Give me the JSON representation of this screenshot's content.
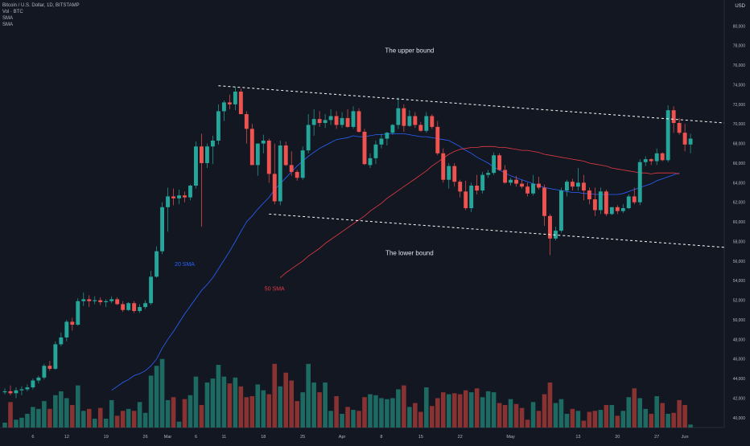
{
  "header": {
    "symbol_line": "Bitcoin / U.S. Dollar, 1D, BITSTAMP",
    "vol_line": "Vol · BTC",
    "sma1_line": "SMA",
    "sma2_line": "SMA",
    "currency": "USD"
  },
  "colors": {
    "background": "#131722",
    "up": "#26a69a",
    "down": "#ef5350",
    "vol_up": "#1e6f66",
    "vol_down": "#8e3434",
    "sma20": "#2962ff",
    "sma50": "#e53a43",
    "channel": "#ffffff",
    "axis_text": "#b2b5be",
    "grid": "#1e222d"
  },
  "chart_data": {
    "type": "candlestick",
    "y_ticks": [
      40000,
      42000,
      44000,
      46000,
      48000,
      50000,
      52000,
      54000,
      56000,
      58000,
      60000,
      62000,
      64000,
      66000,
      68000,
      70000,
      72000,
      74000,
      76000,
      78000,
      80000
    ],
    "y_tick_labels": [
      "40,000",
      "42,000",
      "44,000",
      "46,000",
      "48,000",
      "50,000",
      "52,000",
      "54,000",
      "56,000",
      "58,000",
      "60,000",
      "62,000",
      "64,000",
      "66,000",
      "68,000",
      "70,000",
      "72,000",
      "74,000",
      "76,000",
      "78,000",
      "80,000"
    ],
    "ylim": [
      39000,
      82000
    ],
    "x_ticks": [
      {
        "label": "6",
        "date": "2024-02-06"
      },
      {
        "label": "12",
        "date": "2024-02-12"
      },
      {
        "label": "19",
        "date": "2024-02-19"
      },
      {
        "label": "26",
        "date": "2024-02-26"
      },
      {
        "label": "Mar",
        "date": "2024-03-01"
      },
      {
        "label": "6",
        "date": "2024-03-06"
      },
      {
        "label": "11",
        "date": "2024-03-11"
      },
      {
        "label": "18",
        "date": "2024-03-18"
      },
      {
        "label": "25",
        "date": "2024-03-25"
      },
      {
        "label": "Apr",
        "date": "2024-04-01"
      },
      {
        "label": "8",
        "date": "2024-04-08"
      },
      {
        "label": "15",
        "date": "2024-04-15"
      },
      {
        "label": "22",
        "date": "2024-04-22"
      },
      {
        "label": "May",
        "date": "2024-05-01"
      },
      {
        "label": "13",
        "date": "2024-05-13"
      },
      {
        "label": "20",
        "date": "2024-05-20"
      },
      {
        "label": "27",
        "date": "2024-05-27"
      },
      {
        "label": "Jun",
        "date": "2024-06-01"
      }
    ],
    "first_date": "2024-02-01",
    "last_axis_date": "2024-06-08",
    "candles": [
      [
        42600,
        43000,
        42400,
        42700
      ],
      [
        42700,
        43300,
        42300,
        42500
      ],
      [
        42500,
        43100,
        42000,
        42800
      ],
      [
        42800,
        43200,
        42300,
        42900
      ],
      [
        42900,
        43400,
        42700,
        43100
      ],
      [
        43100,
        44000,
        42900,
        43800
      ],
      [
        43800,
        44300,
        43500,
        44100
      ],
      [
        44100,
        45500,
        43900,
        45300
      ],
      [
        45300,
        45800,
        44800,
        45000
      ],
      [
        45000,
        47800,
        44900,
        47500
      ],
      [
        47500,
        48700,
        47300,
        48200
      ],
      [
        48200,
        50000,
        47800,
        49800
      ],
      [
        49800,
        50200,
        48900,
        49500
      ],
      [
        49500,
        52200,
        49400,
        51900
      ],
      [
        51900,
        52800,
        51400,
        52100
      ],
      [
        52100,
        52500,
        51300,
        51900
      ],
      [
        51900,
        52400,
        51600,
        52000
      ],
      [
        52000,
        52300,
        51500,
        51800
      ],
      [
        51800,
        52100,
        51300,
        51900
      ],
      [
        51900,
        52400,
        51700,
        52100
      ],
      [
        52100,
        52300,
        51500,
        51600
      ],
      [
        51600,
        51900,
        50800,
        51000
      ],
      [
        51000,
        51800,
        50900,
        51700
      ],
      [
        51700,
        51900,
        50700,
        50900
      ],
      [
        50900,
        51600,
        50700,
        51300
      ],
      [
        51300,
        52000,
        51100,
        51700
      ],
      [
        51700,
        55000,
        51500,
        54400
      ],
      [
        54400,
        57500,
        54300,
        57000
      ],
      [
        57000,
        62000,
        56700,
        61500
      ],
      [
        61500,
        63500,
        59000,
        62600
      ],
      [
        62600,
        63400,
        61700,
        62400
      ],
      [
        62400,
        63300,
        61800,
        62700
      ],
      [
        62700,
        63100,
        62000,
        62500
      ],
      [
        62500,
        63800,
        62200,
        63700
      ],
      [
        63700,
        68200,
        63400,
        67700
      ],
      [
        67700,
        69000,
        59500,
        66000
      ],
      [
        66000,
        68000,
        65500,
        67700
      ],
      [
        67700,
        68800,
        65900,
        68300
      ],
      [
        68300,
        72000,
        67900,
        71300
      ],
      [
        71300,
        72400,
        70300,
        72200
      ],
      [
        72200,
        73000,
        71500,
        72000
      ],
      [
        72000,
        73800,
        71400,
        73300
      ],
      [
        73300,
        73600,
        71000,
        71000
      ],
      [
        71000,
        71300,
        68000,
        69500
      ],
      [
        69500,
        70000,
        66000,
        65800
      ],
      [
        65800,
        68000,
        64700,
        68000
      ],
      [
        68000,
        68900,
        67000,
        68300
      ],
      [
        68300,
        68500,
        64000,
        64900
      ],
      [
        64900,
        68000,
        61800,
        62100
      ],
      [
        62100,
        68300,
        61700,
        67800
      ],
      [
        67800,
        68200,
        65700,
        65800
      ],
      [
        65800,
        67200,
        64700,
        65100
      ],
      [
        65100,
        65300,
        64200,
        64500
      ],
      [
        64500,
        67700,
        64300,
        67300
      ],
      [
        67300,
        71000,
        67000,
        69900
      ],
      [
        69900,
        71500,
        68800,
        70500
      ],
      [
        70500,
        71300,
        69700,
        70100
      ],
      [
        70100,
        71000,
        69600,
        70400
      ],
      [
        70400,
        71500,
        69900,
        70800
      ],
      [
        70800,
        71300,
        69500,
        69900
      ],
      [
        69900,
        71200,
        69600,
        70600
      ],
      [
        70600,
        71500,
        69600,
        69700
      ],
      [
        69700,
        71800,
        69500,
        71300
      ],
      [
        71300,
        71600,
        69100,
        69200
      ],
      [
        69200,
        69500,
        65800,
        65900
      ],
      [
        65800,
        67000,
        65500,
        66500
      ],
      [
        66500,
        68300,
        65900,
        67900
      ],
      [
        67900,
        69000,
        67500,
        68500
      ],
      [
        68500,
        69200,
        67800,
        69100
      ],
      [
        69100,
        70000,
        68900,
        69900
      ],
      [
        69900,
        72700,
        69500,
        71600
      ],
      [
        71600,
        72000,
        69200,
        69800
      ],
      [
        69800,
        71400,
        69700,
        70800
      ],
      [
        70800,
        71200,
        69600,
        69900
      ],
      [
        69900,
        70200,
        69200,
        69300
      ],
      [
        69300,
        71200,
        69100,
        70800
      ],
      [
        70800,
        71000,
        69500,
        69700
      ],
      [
        69700,
        70300,
        66800,
        67000
      ],
      [
        67000,
        67500,
        64000,
        64300
      ],
      [
        64300,
        66000,
        63400,
        65700
      ],
      [
        65700,
        66000,
        63600,
        64100
      ],
      [
        64100,
        64300,
        62500,
        63100
      ],
      [
        63100,
        64200,
        61200,
        61400
      ],
      [
        61400,
        64000,
        61000,
        63700
      ],
      [
        63700,
        64800,
        62800,
        63200
      ],
      [
        63200,
        65100,
        62900,
        64800
      ],
      [
        64800,
        65300,
        64500,
        65000
      ],
      [
        65000,
        67100,
        64800,
        66800
      ],
      [
        66800,
        67000,
        65200,
        65300
      ],
      [
        65300,
        65800,
        63900,
        64000
      ],
      [
        64000,
        64500,
        63700,
        64300
      ],
      [
        64300,
        64700,
        63600,
        63900
      ],
      [
        63900,
        64300,
        63400,
        63600
      ],
      [
        63600,
        64000,
        62600,
        62900
      ],
      [
        62900,
        64800,
        62700,
        63900
      ],
      [
        63900,
        64600,
        63300,
        63500
      ],
      [
        63500,
        63800,
        59600,
        60600
      ],
      [
        60600,
        60800,
        56600,
        58300
      ],
      [
        58300,
        59500,
        58100,
        59100
      ],
      [
        59100,
        63500,
        58900,
        63200
      ],
      [
        63200,
        64300,
        62600,
        64100
      ],
      [
        64100,
        64400,
        63200,
        63600
      ],
      [
        63600,
        65500,
        63200,
        64000
      ],
      [
        64000,
        64800,
        62200,
        63200
      ],
      [
        63200,
        63500,
        61800,
        62300
      ],
      [
        62300,
        63500,
        60600,
        61200
      ],
      [
        61200,
        63500,
        60800,
        63100
      ],
      [
        63100,
        63300,
        60600,
        60800
      ],
      [
        60800,
        61500,
        60700,
        61500
      ],
      [
        61500,
        61700,
        60800,
        61100
      ],
      [
        61100,
        61800,
        60900,
        61400
      ],
      [
        61400,
        62800,
        61300,
        62600
      ],
      [
        62600,
        63500,
        61800,
        62000
      ],
      [
        62000,
        66400,
        61700,
        66100
      ],
      [
        66100,
        66700,
        65700,
        66400
      ],
      [
        66400,
        66500,
        65800,
        66200
      ],
      [
        66200,
        67500,
        65800,
        67000
      ],
      [
        67000,
        67100,
        66200,
        66300
      ],
      [
        66300,
        71900,
        66100,
        71400
      ],
      [
        71400,
        71800,
        69100,
        70100
      ],
      [
        70100,
        70600,
        68900,
        69100
      ],
      [
        69100,
        70000,
        67200,
        67900
      ],
      [
        67900,
        69000,
        67000,
        68500
      ]
    ],
    "volumes": [
      39500,
      41600,
      39800,
      40000,
      40400,
      41100,
      40900,
      41700,
      40900,
      42300,
      42700,
      42000,
      41300,
      43300,
      40700,
      40900,
      39900,
      41000,
      39900,
      41800,
      40200,
      40700,
      40900,
      40700,
      41600,
      40500,
      44300,
      45300,
      46000,
      41800,
      42100,
      39600,
      41900,
      42300,
      44200,
      41300,
      43600,
      44000,
      45400,
      44200,
      43500,
      44100,
      43200,
      42100,
      42200,
      43400,
      42800,
      42400,
      45500,
      43200,
      44600,
      43800,
      41700,
      42600,
      45500,
      43600,
      42600,
      43600,
      40700,
      42200,
      40400,
      41100,
      40800,
      40700,
      42100,
      42400,
      42300,
      42000,
      41900,
      42000,
      42900,
      43300,
      41100,
      41500,
      40600,
      43100,
      41200,
      42000,
      42600,
      42400,
      42500,
      42400,
      42800,
      42600,
      43000,
      42100,
      42700,
      42600,
      41500,
      41300,
      41900,
      41400,
      41000,
      39800,
      41600,
      40700,
      42400,
      43600,
      41500,
      41900,
      40400,
      40900,
      40700,
      39700,
      40600,
      40700,
      40800,
      41300,
      41300,
      40200,
      40700,
      42100,
      43000,
      42000,
      40900,
      40400,
      42200,
      41500,
      40400,
      40500,
      41800,
      41300,
      39300
    ],
    "series": [
      {
        "name": "20 SMA",
        "values": [
          null,
          null,
          null,
          null,
          null,
          null,
          null,
          null,
          null,
          null,
          null,
          null,
          null,
          null,
          null,
          null,
          null,
          null,
          null,
          42800,
          43200,
          43600,
          43900,
          44300,
          44500,
          44800,
          45300,
          46000,
          47100,
          48000,
          48800,
          49700,
          50600,
          51400,
          52200,
          53000,
          53600,
          54300,
          55200,
          56100,
          57000,
          58000,
          59000,
          60000,
          60600,
          61300,
          61900,
          62500,
          63300,
          63900,
          64500,
          65100,
          65700,
          66200,
          66700,
          67100,
          67500,
          67800,
          68100,
          68400,
          68500,
          68600,
          68800,
          68700,
          68700,
          68800,
          68900,
          68900,
          69000,
          69000,
          69000,
          69000,
          68900,
          68800,
          68700,
          68700,
          68600,
          68500,
          68400,
          68300,
          68000,
          67700,
          67300,
          67000,
          66600,
          66300,
          66000,
          65600,
          65300,
          65000,
          64700,
          64500,
          64300,
          64100,
          63900,
          63700,
          63500,
          63400,
          63300,
          63200,
          63100,
          63000,
          63000,
          62900,
          62900,
          62800,
          62800,
          62800,
          62800,
          62800,
          62900,
          63100,
          63300,
          63500,
          63700,
          63900,
          64200,
          64400,
          64600,
          64800,
          65000
        ]
      },
      {
        "name": "50 SMA",
        "values": [
          null,
          null,
          null,
          null,
          null,
          null,
          null,
          null,
          null,
          null,
          null,
          null,
          null,
          null,
          null,
          null,
          null,
          null,
          null,
          null,
          null,
          null,
          null,
          null,
          null,
          null,
          null,
          null,
          null,
          null,
          null,
          null,
          null,
          null,
          null,
          null,
          null,
          null,
          null,
          null,
          null,
          null,
          null,
          null,
          null,
          null,
          null,
          null,
          null,
          54300,
          54800,
          55200,
          55600,
          56000,
          56500,
          56900,
          57300,
          57800,
          58200,
          58600,
          59000,
          59400,
          59800,
          60200,
          60600,
          61100,
          61500,
          61900,
          62400,
          62800,
          63200,
          63600,
          64000,
          64400,
          64800,
          65200,
          65700,
          66100,
          66500,
          66900,
          67200,
          67400,
          67500,
          67600,
          67600,
          67700,
          67700,
          67700,
          67600,
          67600,
          67500,
          67400,
          67300,
          67300,
          67200,
          67100,
          66900,
          66800,
          66700,
          66600,
          66500,
          66400,
          66300,
          66200,
          66000,
          65900,
          65800,
          65700,
          65500,
          65400,
          65300,
          65200,
          65100,
          65000,
          65000,
          64900,
          65000,
          65000,
          65000,
          65000,
          64900
        ]
      }
    ],
    "sma_labels": [
      {
        "text": "20 SMA",
        "date": "2024-03-04",
        "price": 55500
      },
      {
        "text": "50 SMA",
        "date": "2024-03-20",
        "price": 53000
      }
    ],
    "channel": {
      "upper": {
        "from": {
          "date": "2024-03-10",
          "price": 73900
        },
        "to": {
          "date": "2024-06-08",
          "price": 70100
        }
      },
      "lower": {
        "from": {
          "date": "2024-03-19",
          "price": 60800
        },
        "to": {
          "date": "2024-06-08",
          "price": 57400
        }
      }
    },
    "annotations": [
      {
        "text": "The upper bound",
        "date": "2024-04-13",
        "price": 77300
      },
      {
        "text": "The lower bound",
        "date": "2024-04-13",
        "price": 56600
      }
    ]
  }
}
